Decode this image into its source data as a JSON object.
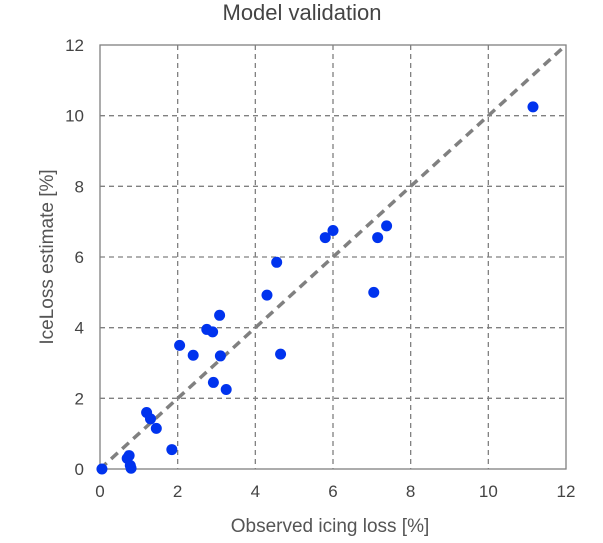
{
  "chart_data": {
    "type": "scatter",
    "title": "Model validation",
    "xlabel": "Observed icing loss [%]",
    "ylabel": "IceLoss estimate [%]",
    "xlim": [
      0,
      12
    ],
    "ylim": [
      0,
      12
    ],
    "xticks": [
      0,
      2,
      4,
      6,
      8,
      10,
      12
    ],
    "yticks": [
      0,
      2,
      4,
      6,
      8,
      10,
      12
    ],
    "grid": true,
    "grid_style": "dashed",
    "legend": "none",
    "colors": {
      "points": "#0033ee",
      "reference_line": "#808080",
      "grid": "#808080",
      "axis": "#808080"
    },
    "reference_line": {
      "x": [
        0,
        12
      ],
      "y": [
        0,
        12
      ]
    },
    "series": [
      {
        "points": [
          {
            "x": 0.05,
            "y": 0.0
          },
          {
            "x": 0.7,
            "y": 0.3
          },
          {
            "x": 0.75,
            "y": 0.38
          },
          {
            "x": 0.78,
            "y": 0.1
          },
          {
            "x": 0.8,
            "y": 0.02
          },
          {
            "x": 1.2,
            "y": 1.6
          },
          {
            "x": 1.3,
            "y": 1.42
          },
          {
            "x": 1.45,
            "y": 1.15
          },
          {
            "x": 1.85,
            "y": 0.55
          },
          {
            "x": 2.05,
            "y": 3.5
          },
          {
            "x": 2.4,
            "y": 3.22
          },
          {
            "x": 2.75,
            "y": 3.95
          },
          {
            "x": 2.9,
            "y": 3.88
          },
          {
            "x": 2.92,
            "y": 2.45
          },
          {
            "x": 3.08,
            "y": 4.35
          },
          {
            "x": 3.1,
            "y": 3.2
          },
          {
            "x": 3.25,
            "y": 2.25
          },
          {
            "x": 4.3,
            "y": 4.92
          },
          {
            "x": 4.55,
            "y": 5.85
          },
          {
            "x": 4.65,
            "y": 3.25
          },
          {
            "x": 5.8,
            "y": 6.55
          },
          {
            "x": 6.0,
            "y": 6.75
          },
          {
            "x": 7.05,
            "y": 5.0
          },
          {
            "x": 7.15,
            "y": 6.55
          },
          {
            "x": 7.38,
            "y": 6.88
          },
          {
            "x": 11.15,
            "y": 10.25
          }
        ]
      }
    ]
  }
}
